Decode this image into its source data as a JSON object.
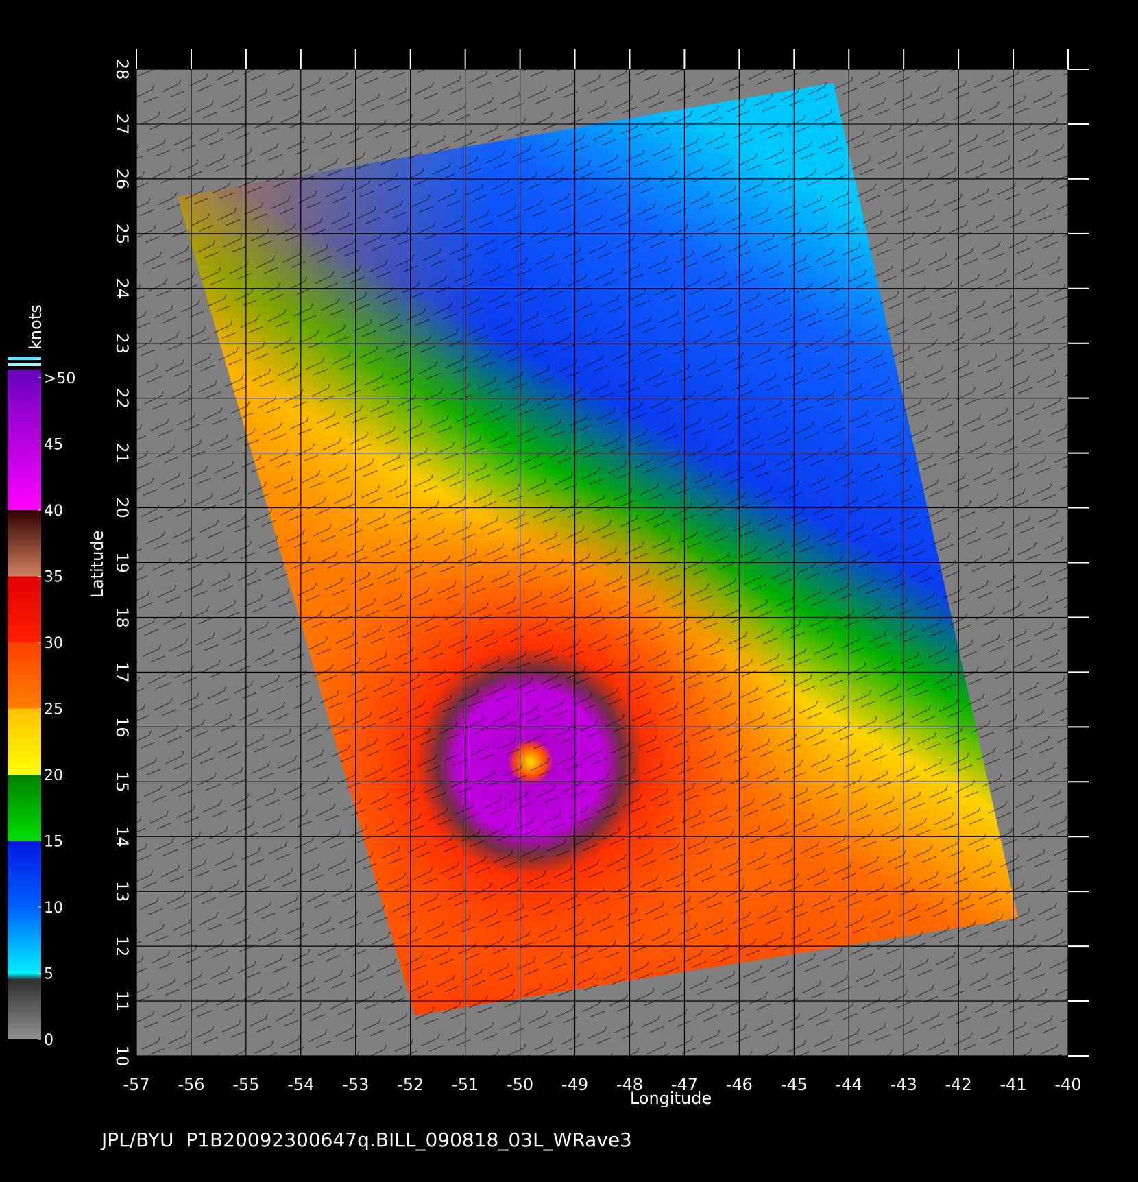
{
  "map": {
    "xlabel": "Longitude",
    "ylabel": "Latitude",
    "xlim": [
      -57,
      -40
    ],
    "ylim": [
      10,
      28
    ],
    "xticks": [
      -57,
      -56,
      -55,
      -54,
      -53,
      -52,
      -51,
      -50,
      -49,
      -48,
      -47,
      -46,
      -45,
      -44,
      -43,
      -42,
      -41,
      -40
    ],
    "yticks": [
      10,
      11,
      12,
      13,
      14,
      15,
      16,
      17,
      18,
      19,
      20,
      21,
      22,
      23,
      24,
      25,
      26,
      27,
      28
    ],
    "grid": true
  },
  "colorbar": {
    "title": "knots",
    "lim": [
      0,
      50
    ],
    "ticks": [
      0,
      5,
      10,
      15,
      20,
      25,
      30,
      35,
      40,
      45,
      {
        "value": 50,
        "label": ">50"
      }
    ]
  },
  "footer": "JPL/BYU  P1B20092300647q.BILL_090818_03L_WRave3"
}
